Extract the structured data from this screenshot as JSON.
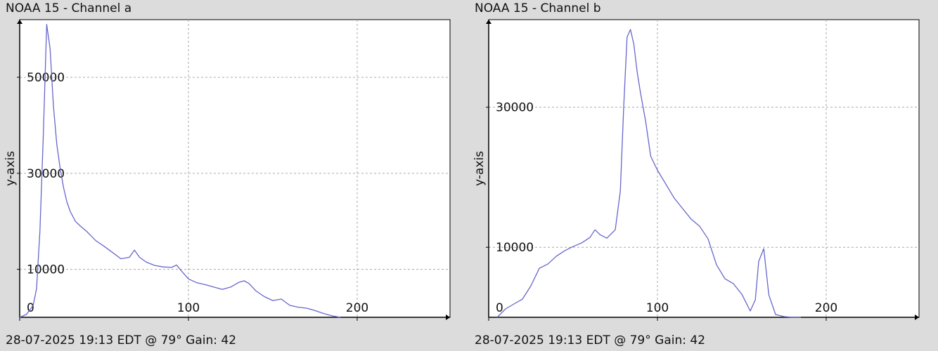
{
  "colors": {
    "background": "#dcdcdc",
    "plot_bg": "#ffffff",
    "line": "#6666cc",
    "grid": "#aaaaaa",
    "axis": "#000000"
  },
  "chart_data": [
    {
      "type": "line",
      "title": "NOAA 15 - Channel a",
      "ylabel": "y-axis",
      "xlabel": "",
      "footer": "28-07-2025 19:13 EDT @ 79° Gain: 42",
      "xlim": [
        0,
        255
      ],
      "ylim": [
        0,
        62000
      ],
      "x_ticks": [
        0,
        100,
        200
      ],
      "y_ticks": [
        10000,
        30000,
        50000
      ],
      "x_tick_labels": [
        "0",
        "100",
        "200"
      ],
      "y_tick_labels": [
        "10000",
        "30000",
        "50000"
      ],
      "grid": true,
      "series": [
        {
          "x": [
            0,
            4,
            8,
            10,
            12,
            14,
            16,
            18,
            20,
            22,
            24,
            26,
            28,
            30,
            33,
            36,
            40,
            45,
            50,
            55,
            60,
            65,
            68,
            71,
            75,
            80,
            85,
            90,
            93,
            95,
            100,
            105,
            110,
            115,
            120,
            125,
            130,
            133,
            136,
            140,
            145,
            150,
            155,
            160,
            165,
            170,
            175,
            180,
            185,
            190
          ],
          "y": [
            0,
            600,
            2500,
            6000,
            18000,
            38000,
            61000,
            56000,
            44000,
            36000,
            31000,
            27000,
            24000,
            22000,
            20000,
            19000,
            17800,
            16000,
            14800,
            13500,
            12200,
            12500,
            14000,
            12500,
            11500,
            10800,
            10500,
            10400,
            10900,
            10000,
            8000,
            7200,
            6800,
            6300,
            5800,
            6300,
            7300,
            7600,
            7000,
            5500,
            4300,
            3500,
            3800,
            2500,
            2100,
            1900,
            1400,
            800,
            300,
            0
          ]
        }
      ]
    },
    {
      "type": "line",
      "title": "NOAA 15 - Channel b",
      "ylabel": "y-axis",
      "xlabel": "",
      "footer": "28-07-2025 19:13 EDT @ 79° Gain: 42",
      "xlim": [
        0,
        255
      ],
      "ylim": [
        0,
        42500
      ],
      "x_ticks": [
        0,
        100,
        200
      ],
      "y_ticks": [
        10000,
        30000
      ],
      "x_tick_labels": [
        "0",
        "100",
        "200"
      ],
      "y_tick_labels": [
        "10000",
        "30000"
      ],
      "grid": true,
      "series": [
        {
          "x": [
            5,
            10,
            15,
            20,
            25,
            30,
            35,
            40,
            45,
            50,
            55,
            60,
            63,
            66,
            70,
            75,
            78,
            80,
            82,
            84,
            86,
            88,
            90,
            93,
            96,
            100,
            105,
            110,
            115,
            120,
            125,
            130,
            135,
            140,
            145,
            150,
            155,
            158,
            160,
            163,
            166,
            170,
            175,
            180,
            185
          ],
          "y": [
            0,
            1200,
            1900,
            2600,
            4500,
            7000,
            7600,
            8700,
            9500,
            10100,
            10600,
            11400,
            12500,
            11800,
            11300,
            12500,
            18000,
            30000,
            40000,
            41100,
            39000,
            35000,
            32000,
            28000,
            23000,
            21000,
            19000,
            17000,
            15500,
            14000,
            13000,
            11200,
            7500,
            5500,
            4800,
            3300,
            900,
            2500,
            8000,
            9800,
            3200,
            400,
            100,
            0,
            0
          ]
        }
      ]
    }
  ]
}
